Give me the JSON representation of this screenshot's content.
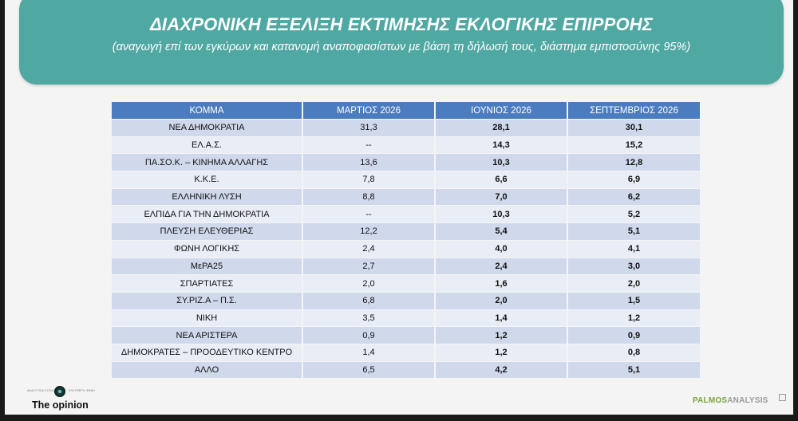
{
  "header": {
    "title": "ΔΙΑΧΡΟΝΙΚΗ ΕΞΕΛΙΞΗ ΕΚΤΙΜΗΣΗΣ ΕΚΛΟΓΙΚΗΣ ΕΠΙΡΡΟΗΣ",
    "subtitle": "(αναγωγή επί των εγκύρων και κατανομή αναποφασίστων με βάση τη δήλωσή τους, διάστημα εμπιστοσύνης 95%)"
  },
  "table": {
    "columns": [
      "ΚΟΜΜΑ",
      "ΜΑΡΤΙΟΣ 2026",
      "ΙΟΥΝΙΟΣ 2026",
      "ΣΕΠΤΕΜΒΡΙΟΣ 2026"
    ],
    "rows": [
      {
        "party": "ΝΕΑ ΔΗΜΟΚΡΑΤΙΑ",
        "mar": "31,3",
        "jun": "28,1",
        "sep": "30,1"
      },
      {
        "party": "ΕΛ.Α.Σ.",
        "mar": "--",
        "jun": "14,3",
        "sep": "15,2"
      },
      {
        "party": "ΠΑ.ΣΟ.Κ. – ΚΙΝΗΜΑ ΑΛΛΑΓΗΣ",
        "mar": "13,6",
        "jun": "10,3",
        "sep": "12,8"
      },
      {
        "party": "Κ.Κ.Ε.",
        "mar": "7,8",
        "jun": "6,6",
        "sep": "6,9"
      },
      {
        "party": "ΕΛΛΗΝΙΚΗ ΛΥΣΗ",
        "mar": "8,8",
        "jun": "7,0",
        "sep": "6,2"
      },
      {
        "party": "ΕΛΠΙΔΑ ΓΙΑ ΤΗΝ ΔΗΜΟΚΡΑΤΙΑ",
        "mar": "--",
        "jun": "10,3",
        "sep": "5,2"
      },
      {
        "party": "ΠΛΕΥΣΗ ΕΛΕΥΘΕΡΙΑΣ",
        "mar": "12,2",
        "jun": "5,4",
        "sep": "5,1"
      },
      {
        "party": "ΦΩΝΗ ΛΟΓΙΚΗΣ",
        "mar": "2,4",
        "jun": "4,0",
        "sep": "4,1"
      },
      {
        "party": "ΜεΡΑ25",
        "mar": "2,7",
        "jun": "2,4",
        "sep": "3,0"
      },
      {
        "party": "ΣΠΑΡΤΙΑΤΕΣ",
        "mar": "2,0",
        "jun": "1,6",
        "sep": "2,0"
      },
      {
        "party": "ΣΥ.ΡΙΖ.Α – Π.Σ.",
        "mar": "6,8",
        "jun": "2,0",
        "sep": "1,5"
      },
      {
        "party": "ΝΙΚΗ",
        "mar": "3,5",
        "jun": "1,4",
        "sep": "1,2"
      },
      {
        "party": "ΝΕΑ ΑΡΙΣΤΕΡΑ",
        "mar": "0,9",
        "jun": "1,2",
        "sep": "0,9"
      },
      {
        "party": "ΔΗΜΟΚΡΑΤΕΣ – ΠΡΟΟΔΕΥΤΙΚΟ ΚΕΝΤΡΟ",
        "mar": "1,4",
        "jun": "1,2",
        "sep": "0,8"
      },
      {
        "party": "ΑΛΛΟ",
        "mar": "6,5",
        "jun": "4,2",
        "sep": "5,1"
      }
    ]
  },
  "footer": {
    "left_logo": {
      "tagline_left": "ΑΝΑΛΥΤΙΚΑ ΣΧΟΛΙΑ",
      "tagline_right": "ΕΛΕΥΘΕΡΗ ΦΩΝΗ",
      "brand": "The opinion"
    },
    "right_logo": {
      "part1": "PALMOS",
      "part2": "ANALYSIS"
    }
  },
  "colors": {
    "banner": "#4fa8a2",
    "header_row": "#4a7cbf",
    "row_odd": "#d0d9ec",
    "row_even": "#e9edf6"
  }
}
